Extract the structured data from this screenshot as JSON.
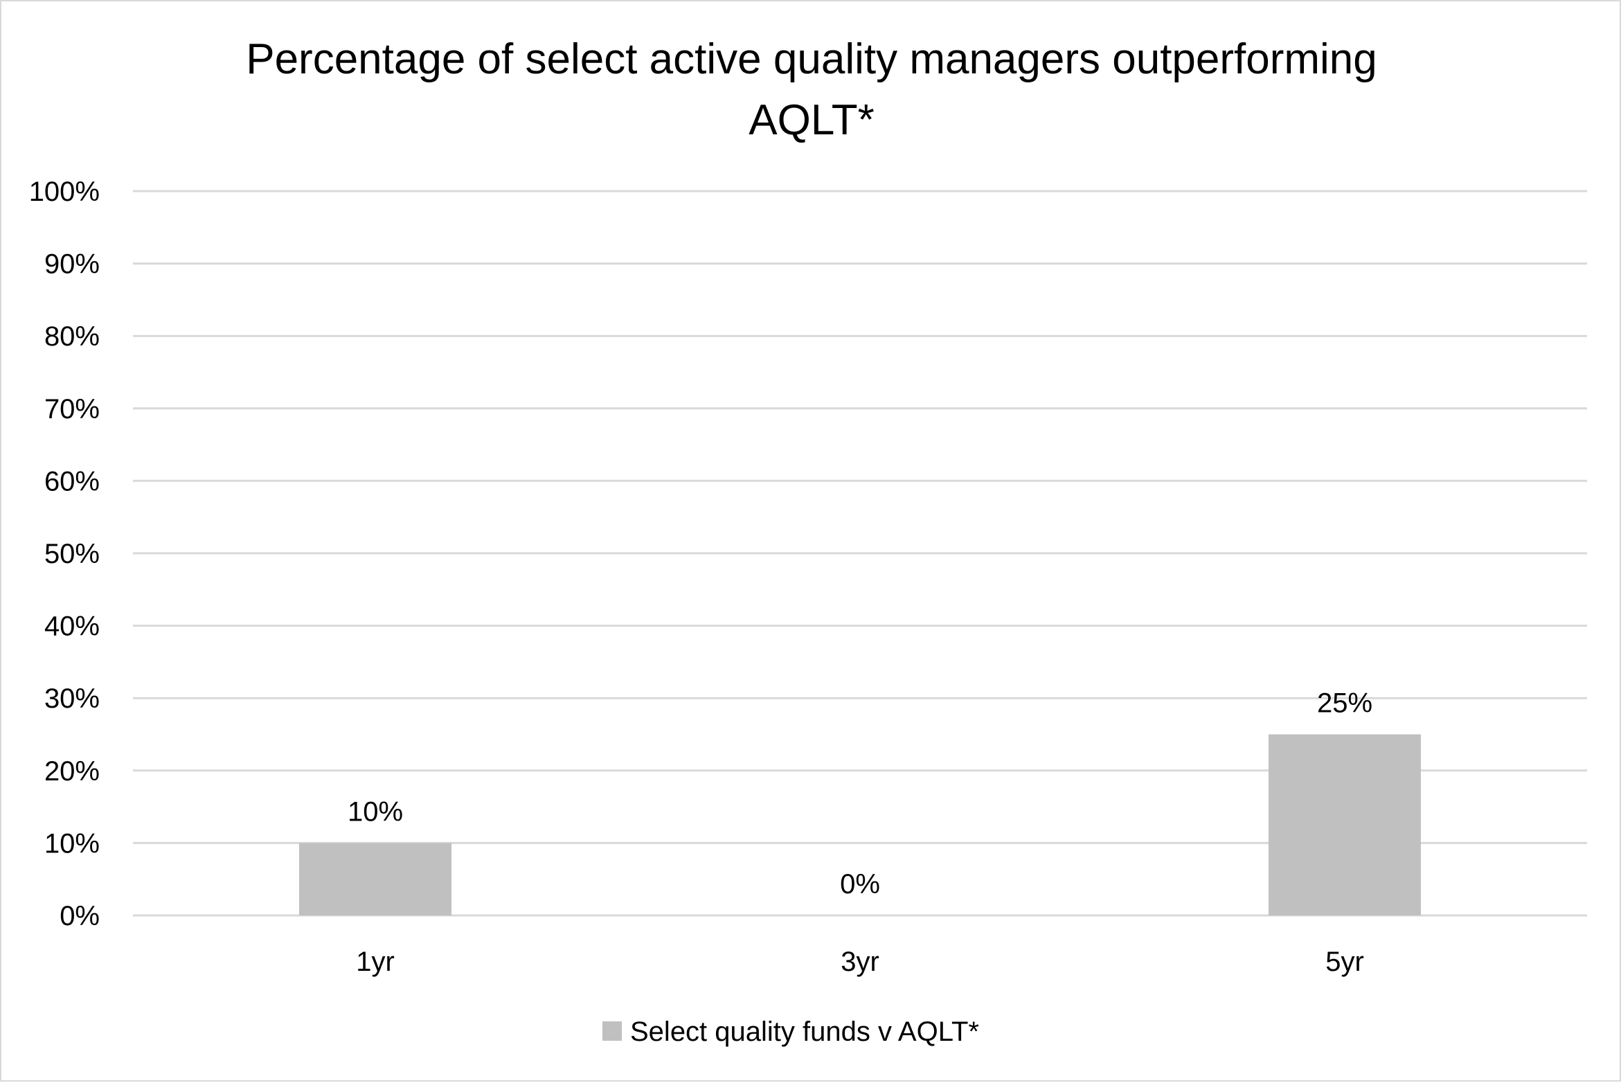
{
  "chart_data": {
    "type": "bar",
    "title_lines": [
      "Percentage of select active quality managers outperforming",
      "AQLT*"
    ],
    "categories": [
      "1yr",
      "3yr",
      "5yr"
    ],
    "series": [
      {
        "name": "Select quality funds v AQLT*",
        "values": [
          10,
          0,
          25
        ],
        "data_labels": [
          "10%",
          "0%",
          "25%"
        ],
        "color": "#c0c0c0"
      }
    ],
    "ylim": [
      0,
      100
    ],
    "y_ticks": [
      0,
      10,
      20,
      30,
      40,
      50,
      60,
      70,
      80,
      90,
      100
    ],
    "y_tick_labels": [
      "0%",
      "10%",
      "20%",
      "30%",
      "40%",
      "50%",
      "60%",
      "70%",
      "80%",
      "90%",
      "100%"
    ],
    "xlabel": "",
    "ylabel": "",
    "grid": true,
    "gridline_color": "#d9d9d9",
    "legend_position": "bottom"
  }
}
